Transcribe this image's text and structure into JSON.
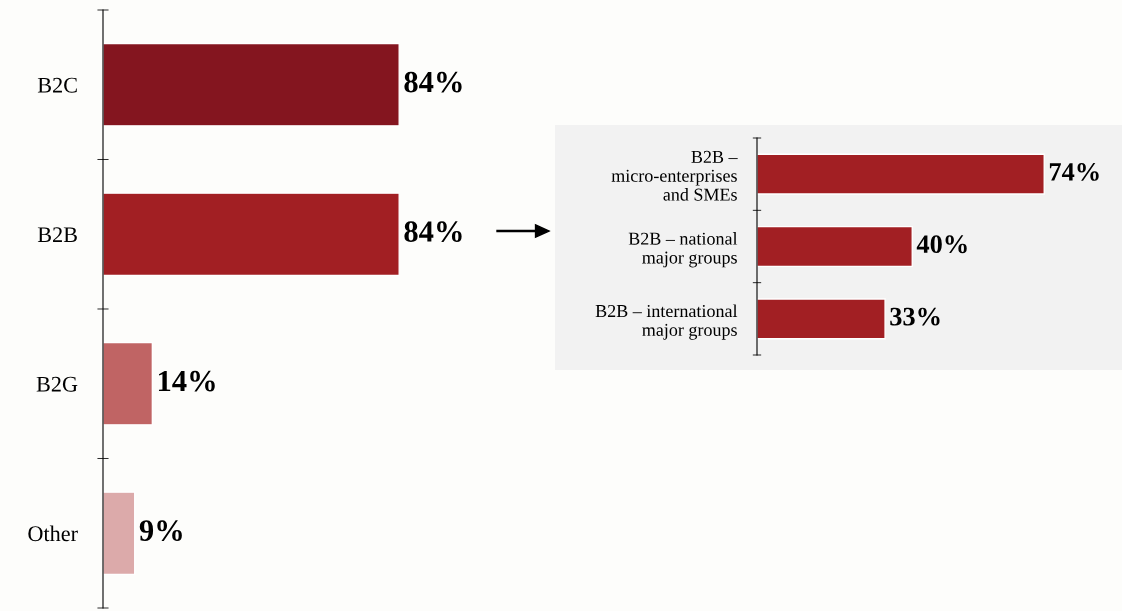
{
  "chart_data": [
    {
      "type": "bar",
      "orientation": "horizontal",
      "categories": [
        "B2C",
        "B2B",
        "B2G",
        "Other"
      ],
      "values": [
        84,
        84,
        14,
        9
      ],
      "value_labels": [
        "84%",
        "84%",
        "14%",
        "9%"
      ],
      "colors": [
        "#84151f",
        "#a21f23",
        "#c06464",
        "#dcaaaa"
      ],
      "tick_labels": "y",
      "grid": false,
      "legend": false
    },
    {
      "type": "bar",
      "orientation": "horizontal",
      "categories": [
        "B2B –\nmicro-enterprises\nand SMEs",
        "B2B – national\nmajor groups",
        "B2B – international\nmajor groups"
      ],
      "values": [
        74,
        40,
        33
      ],
      "value_labels": [
        "74%",
        "40%",
        "33%"
      ],
      "color": "#a21f23",
      "tick_labels": "y",
      "grid": false,
      "legend": false
    }
  ]
}
